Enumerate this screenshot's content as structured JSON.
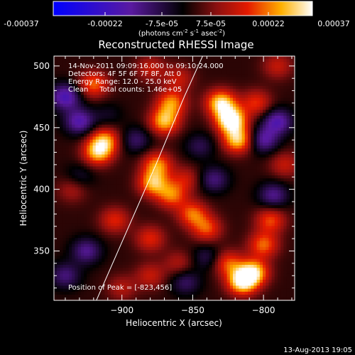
{
  "colorbar": {
    "ticks": [
      "-0.00037",
      "-0.00022",
      "-7.5e-05",
      "7.5e-05",
      "0.00022",
      "0.00037"
    ],
    "unit_parts": [
      "(photons cm",
      "-2",
      " s",
      "-1",
      " asec",
      "-2",
      ")"
    ]
  },
  "chart_data": {
    "type": "heatmap",
    "title": "Reconstructed RHESSI Image",
    "xlabel": "Heliocentric X (arcsec)",
    "ylabel": "Heliocentric Y (arcsec)",
    "xlim": [
      -948,
      -778
    ],
    "ylim": [
      310,
      508
    ],
    "x_ticks": [
      -900,
      -850,
      -800
    ],
    "y_ticks": [
      350,
      400,
      450,
      500
    ],
    "x_tick_labels": [
      "−900",
      "−850",
      "−800"
    ],
    "y_tick_labels": [
      "350",
      "400",
      "450",
      "500"
    ],
    "color_range": [
      -0.00037,
      0.00037
    ],
    "colormap": "blue-purple-red-yellow-white",
    "grid": false,
    "annotations": [
      "14-Nov-2011 09:09:16.000 to 09:10:24.000",
      "Detectors: 4F 5F 6F 7F 8F, Att 0",
      "Energy Range: 12.0 - 25.0 keV",
      "Clean     Total counts: 1.46e+05"
    ],
    "peak_text": "Position of Peak = [-823,456]",
    "peak_position": [
      -823,
      456
    ],
    "limb_line": [
      [
        -918,
        310
      ],
      [
        -897,
        365
      ],
      [
        -876,
        420
      ],
      [
        -856,
        475
      ],
      [
        -843,
        508
      ]
    ],
    "blobs": [
      {
        "x": -823,
        "y": 456,
        "v": 0.00037
      },
      {
        "x": -830,
        "y": 470,
        "v": 0.0003
      },
      {
        "x": -818,
        "y": 440,
        "v": 0.00028
      },
      {
        "x": -870,
        "y": 455,
        "v": 0.00026
      },
      {
        "x": -865,
        "y": 470,
        "v": 0.00022
      },
      {
        "x": -875,
        "y": 420,
        "v": 0.00022
      },
      {
        "x": -878,
        "y": 405,
        "v": 0.00025
      },
      {
        "x": -865,
        "y": 395,
        "v": 0.0002
      },
      {
        "x": -855,
        "y": 408,
        "v": 0.00012
      },
      {
        "x": -850,
        "y": 380,
        "v": 0.0002
      },
      {
        "x": -840,
        "y": 368,
        "v": 0.00018
      },
      {
        "x": -917,
        "y": 430,
        "v": 0.00026
      },
      {
        "x": -912,
        "y": 440,
        "v": 0.00022
      },
      {
        "x": -920,
        "y": 485,
        "v": 0.0002
      },
      {
        "x": -905,
        "y": 375,
        "v": 0.00015
      },
      {
        "x": -880,
        "y": 360,
        "v": 0.00015
      },
      {
        "x": -815,
        "y": 325,
        "v": 0.00033
      },
      {
        "x": -807,
        "y": 333,
        "v": 0.00028
      },
      {
        "x": -825,
        "y": 340,
        "v": 0.00018
      },
      {
        "x": -800,
        "y": 355,
        "v": 0.0002
      },
      {
        "x": -795,
        "y": 375,
        "v": 0.00018
      },
      {
        "x": -860,
        "y": 340,
        "v": 0.0001
      },
      {
        "x": -785,
        "y": 420,
        "v": 0.00012
      },
      {
        "x": -880,
        "y": 330,
        "v": 0.00012
      },
      {
        "x": -900,
        "y": 320,
        "v": 0.0001
      },
      {
        "x": -860,
        "y": 490,
        "v": 0.00012
      },
      {
        "x": -880,
        "y": 498,
        "v": 0.00012
      },
      {
        "x": -935,
        "y": 400,
        "v": 0.0001
      },
      {
        "x": -790,
        "y": 500,
        "v": 0.00012
      },
      {
        "x": -805,
        "y": 470,
        "v": 0.00016
      },
      {
        "x": -930,
        "y": 455,
        "v": -0.0002
      },
      {
        "x": -940,
        "y": 475,
        "v": -0.00022
      },
      {
        "x": -925,
        "y": 350,
        "v": -0.00016
      },
      {
        "x": -940,
        "y": 330,
        "v": -0.00014
      },
      {
        "x": -890,
        "y": 440,
        "v": -0.00012
      },
      {
        "x": -793,
        "y": 395,
        "v": -0.00016
      },
      {
        "x": -790,
        "y": 455,
        "v": -0.0002
      },
      {
        "x": -800,
        "y": 440,
        "v": -0.00018
      },
      {
        "x": -835,
        "y": 408,
        "v": -0.00014
      },
      {
        "x": -845,
        "y": 435,
        "v": -0.0001
      },
      {
        "x": -855,
        "y": 325,
        "v": -0.00012
      },
      {
        "x": -840,
        "y": 345,
        "v": -0.0001
      },
      {
        "x": -930,
        "y": 410,
        "v": -8e-05
      },
      {
        "x": -910,
        "y": 460,
        "v": -6e-05
      }
    ]
  },
  "footer": {
    "timestamp": "13-Aug-2013 19:05"
  }
}
